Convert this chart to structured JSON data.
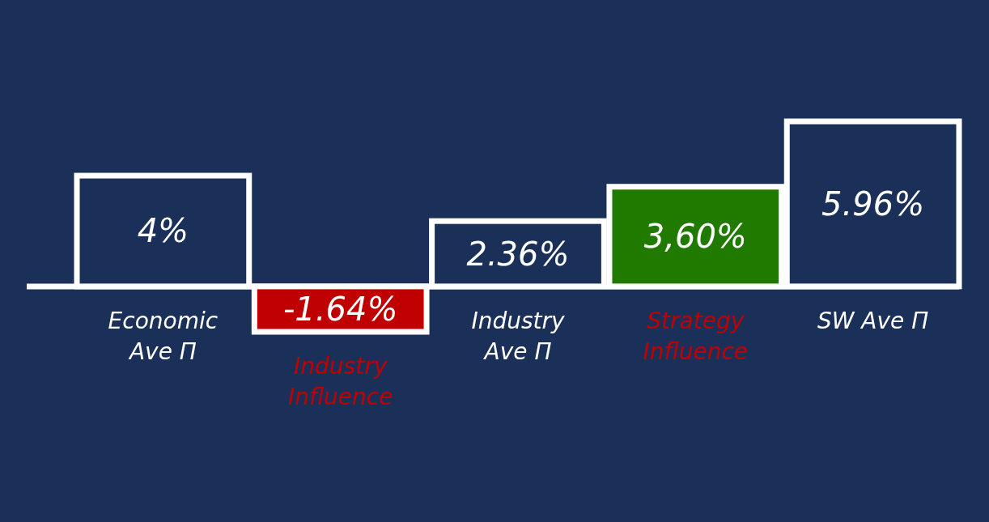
{
  "chart_data": {
    "type": "bar",
    "categories": [
      "Economic Ave Π",
      "Industry Influence",
      "Industry Ave Π",
      "Strategy Influence",
      "SW Ave Π"
    ],
    "values": [
      4,
      -1.64,
      2.36,
      3.6,
      5.96
    ],
    "colors": [
      "#1b3059",
      "#c00000",
      "#1b3059",
      "#217a00",
      "#1b3059"
    ],
    "value_labels": [
      "4%",
      "-1.64%",
      "2.36%",
      "3,60%",
      "5.96%"
    ]
  }
}
